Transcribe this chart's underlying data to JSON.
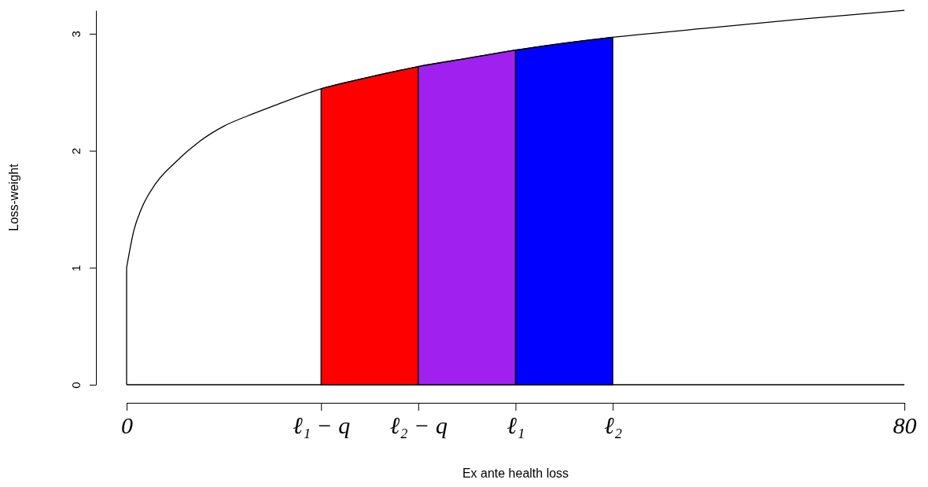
{
  "chart_data": {
    "type": "area",
    "xlabel": "Ex ante health loss",
    "ylabel": "Loss-weight",
    "xlim": [
      0,
      80
    ],
    "ylim": [
      0,
      3.2
    ],
    "xticks": [
      0,
      {
        "value": 20,
        "label": "ℓ₁ − q"
      },
      {
        "value": 30,
        "label": "ℓ₂ − q"
      },
      {
        "value": 40,
        "label": "ℓ₁"
      },
      {
        "value": 50,
        "label": "ℓ₂"
      },
      80
    ],
    "yticks": [
      0,
      1,
      2,
      3
    ],
    "grid": false,
    "ref_lines": [
      {
        "axis": "y",
        "value": 0,
        "color": "#000000"
      }
    ],
    "series": [
      {
        "type": "line",
        "color": "#000000",
        "x": [
          0,
          0.75,
          1.5,
          3,
          5,
          7.5,
          10,
          12.5,
          15,
          20,
          25,
          30,
          35,
          40,
          45,
          50,
          60,
          70,
          80
        ],
        "values": [
          1.0,
          1.32,
          1.5,
          1.72,
          1.9,
          2.08,
          2.21,
          2.3,
          2.38,
          2.53,
          2.63,
          2.72,
          2.79,
          2.86,
          2.92,
          2.97,
          3.05,
          3.13,
          3.2
        ]
      },
      {
        "color": "#ff0000",
        "x": [
          20,
          25,
          30
        ],
        "values": [
          2.53,
          2.63,
          2.72
        ]
      },
      {
        "color": "#a020f0",
        "x": [
          30,
          35,
          40
        ],
        "values": [
          2.72,
          2.79,
          2.86
        ]
      },
      {
        "color": "#0000ff",
        "x": [
          40,
          45,
          50
        ],
        "values": [
          2.86,
          2.92,
          2.97
        ]
      }
    ]
  }
}
